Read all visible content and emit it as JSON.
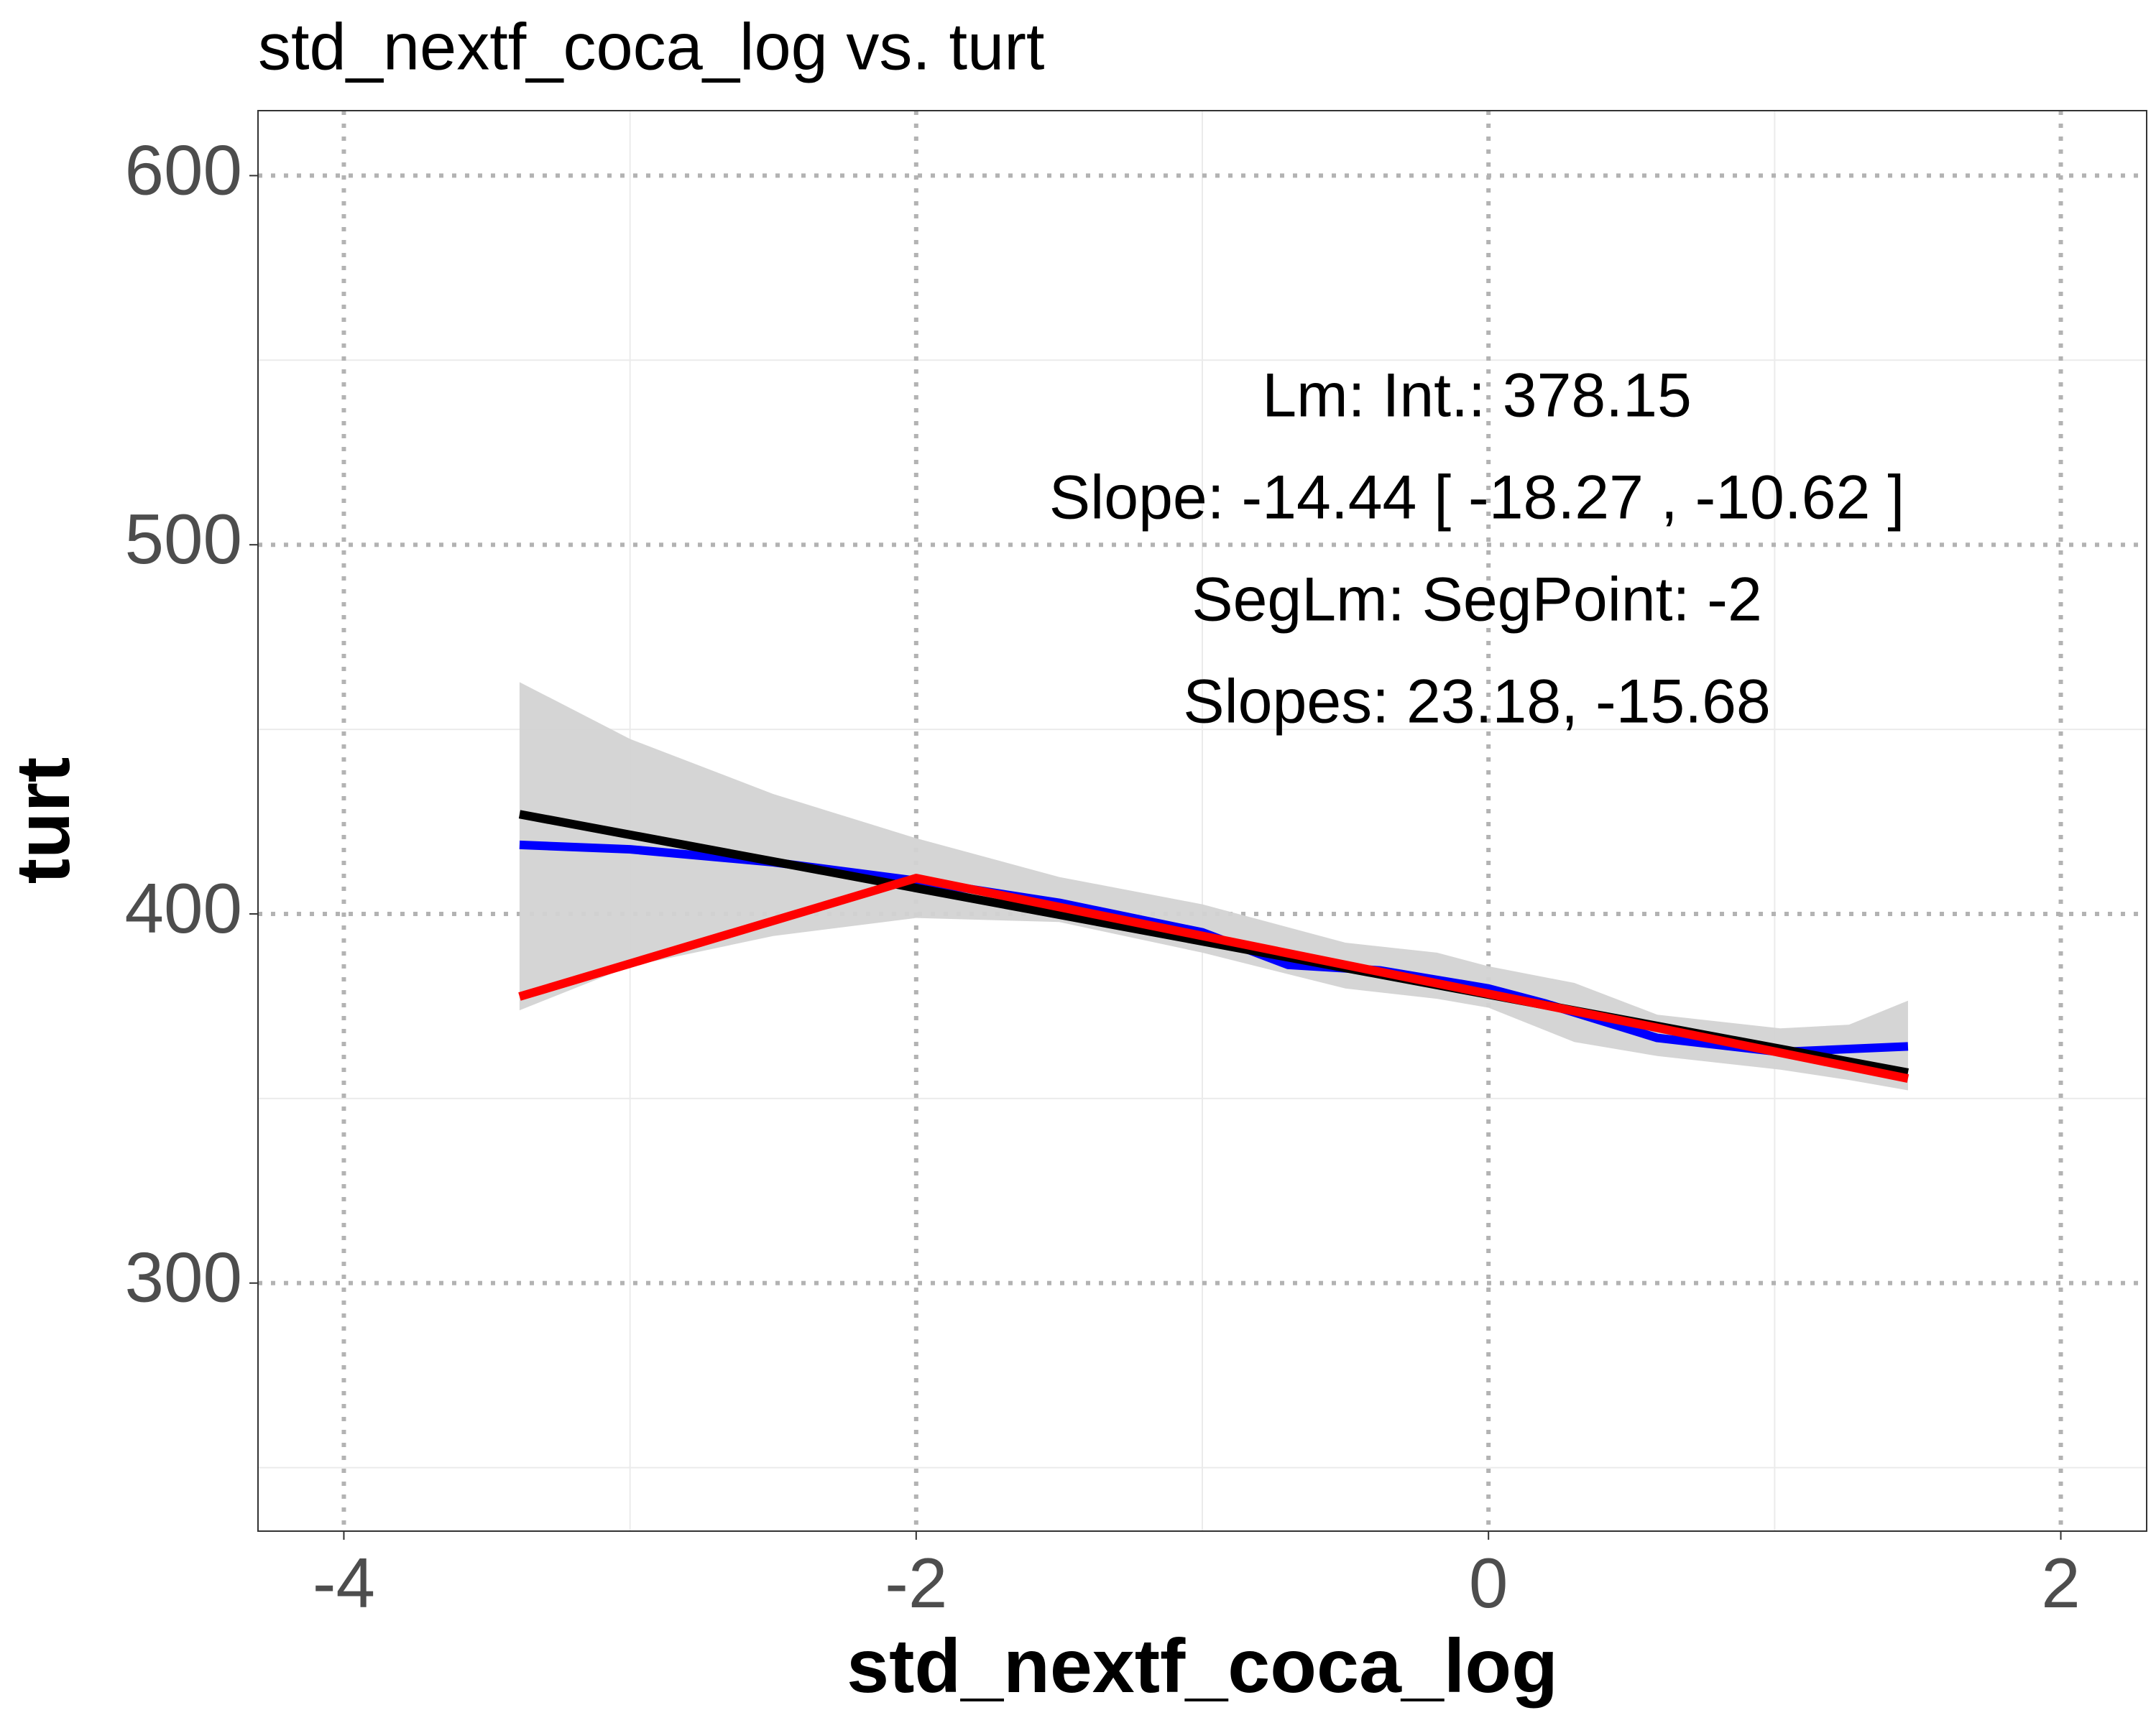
{
  "chart_data": {
    "type": "line",
    "title": "std_nextf_coca_log vs. turt",
    "x_label": "std_nextf_coca_log",
    "y_label": "turt",
    "annotations": [
      "Lm: Int.: 378.15",
      "Slope: -14.44 [ -18.27 , -10.62 ]",
      "SegLm: SegPoint: -2",
      "Slopes: 23.18, -15.68"
    ],
    "xlim": [
      -4.3,
      2.3
    ],
    "xticks": [
      -4,
      -2,
      0,
      2
    ],
    "xminorticks": [
      -3,
      -1,
      1
    ],
    "ylim": [
      232.8,
      617.6
    ],
    "yticks": [
      300,
      400,
      500,
      600
    ],
    "yminorticks": [
      250,
      350,
      450,
      550
    ],
    "grid": true,
    "band": {
      "color": "#d3d3d3",
      "x": [
        -3.386,
        -3,
        -2.5,
        -2,
        -1.5,
        -1,
        -0.5,
        -0.18,
        0,
        0.3,
        0.59,
        1.02,
        1.26,
        1.466
      ],
      "upper": [
        462.8,
        447.4,
        432.5,
        420.5,
        410,
        402.6,
        392.2,
        389.5,
        385.8,
        381.3,
        372.7,
        369,
        370,
        376.5
      ],
      "lower": [
        373.9,
        385.8,
        394,
        398.9,
        397.8,
        389.5,
        379.8,
        377,
        374.6,
        365.3,
        361.5,
        357.8,
        355,
        352.2
      ]
    },
    "series": [
      {
        "color": "#0000ff",
        "x": [
          -3.386,
          -3,
          -2.5,
          -2,
          -1.5,
          -1,
          -0.7,
          -0.38,
          0,
          0.2,
          0.59,
          1.02,
          1.466
        ],
        "values": [
          418.7,
          417.5,
          414,
          409,
          403,
          395,
          386.2,
          384.7,
          379.8,
          375.7,
          366.4,
          362.6,
          364.1
        ]
      },
      {
        "color": "#000000",
        "x": [
          -3.386,
          1.466
        ],
        "values": [
          427.0,
          357.0
        ]
      },
      {
        "color": "#ff0000",
        "x": [
          -3.386,
          -2,
          1.466
        ],
        "values": [
          377.6,
          409.7,
          355.4
        ]
      }
    ]
  }
}
